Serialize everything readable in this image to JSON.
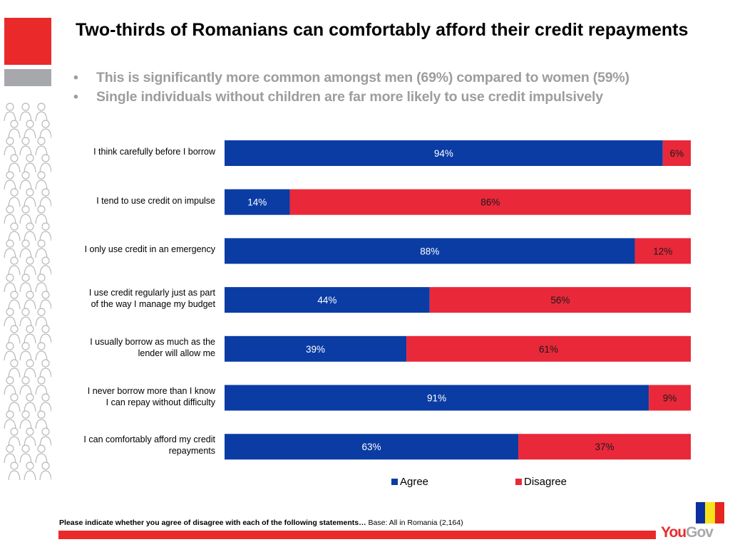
{
  "slide": {
    "title": "Two-thirds of Romanians can comfortably afford their credit repayments",
    "bullets": [
      "This is significantly more common amongst men (69%) compared to women (59%)",
      "Single individuals without children are far more likely to use credit impulsively"
    ],
    "bullet_glyph": "•",
    "footnote_bold": "Please indicate whether you agree of disagree with each of the following statements…",
    "footnote_base": " Base: All in Romania (2,164)",
    "logo_you": "You",
    "logo_gov": "Gov",
    "colors": {
      "brand_red": "#ea2a2a",
      "brand_grey": "#a7a8ab",
      "flag": [
        "#0a2f9e",
        "#f7e21b",
        "#e42520"
      ]
    }
  },
  "chart_data": {
    "type": "bar",
    "orientation": "horizontal",
    "stacked": "100%",
    "title": "",
    "xlabel": "",
    "ylabel": "",
    "xlim": [
      0,
      100
    ],
    "grid": false,
    "legend_position": "bottom",
    "categories": [
      "I think carefully before I borrow",
      "I tend to use credit on impulse",
      "I only use credit in an emergency",
      "I use credit regularly just as part of the way I manage my budget",
      "I usually borrow as much as the lender will allow me",
      "I never  borrow more than I know I can repay without difficulty",
      "I can comfortably afford my credit repayments"
    ],
    "category_lines": [
      [
        "I think carefully before I borrow"
      ],
      [
        "I tend to use credit on impulse"
      ],
      [
        "I only use credit in an emergency"
      ],
      [
        "I use credit regularly just as part",
        "of the way I manage my budget"
      ],
      [
        "I usually borrow as much as the",
        "lender will allow me"
      ],
      [
        "I never  borrow more than I know",
        "I can repay without difficulty"
      ],
      [
        "I can comfortably afford my credit",
        "repayments"
      ]
    ],
    "series": [
      {
        "name": "Agree",
        "color": "#0a3ca4",
        "label_color": "#ffffff",
        "values": [
          94,
          14,
          88,
          44,
          39,
          91,
          63
        ]
      },
      {
        "name": "Disagree",
        "color": "#e9283a",
        "label_color": "#1a1a1a",
        "values": [
          6,
          86,
          12,
          56,
          61,
          9,
          37
        ]
      }
    ],
    "value_suffix": "%"
  }
}
